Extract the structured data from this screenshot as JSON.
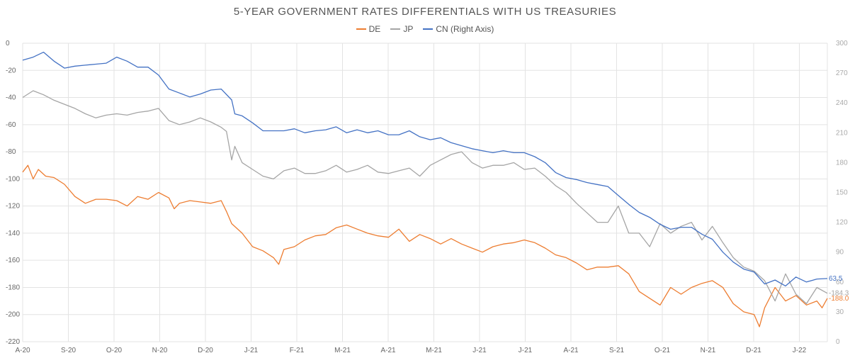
{
  "chart_data": {
    "type": "line",
    "title": "5-YEAR GOVERNMENT RATES DIFFERENTIALS WITH US TREASURIES",
    "grid": true,
    "legend_position": "top-center",
    "x_tick_labels": [
      "A-20",
      "S-20",
      "O-20",
      "N-20",
      "D-20",
      "J-21",
      "F-21",
      "M-21",
      "A-21",
      "M-21",
      "J-21",
      "J-21",
      "A-21",
      "S-21",
      "O-21",
      "N-21",
      "D-21",
      "J-22"
    ],
    "y_left": {
      "ylim": [
        -220,
        0
      ],
      "ticks": [
        0,
        -20,
        -40,
        -60,
        -80,
        -100,
        -120,
        -140,
        -160,
        -180,
        -200,
        -220
      ]
    },
    "y_right": {
      "ylim": [
        0,
        300
      ],
      "ticks": [
        300,
        270,
        240,
        210,
        180,
        150,
        120,
        90,
        60,
        30,
        0
      ]
    },
    "series": [
      {
        "name": "DE",
        "color": "#ED7D31",
        "axis": "left",
        "end_label": "-188.0",
        "points": [
          [
            0,
            -95
          ],
          [
            0.5,
            -90
          ],
          [
            1,
            -100
          ],
          [
            1.5,
            -93
          ],
          [
            2.2,
            -98
          ],
          [
            3,
            -99
          ],
          [
            4,
            -104
          ],
          [
            5,
            -113
          ],
          [
            6,
            -118
          ],
          [
            7,
            -115
          ],
          [
            8,
            -115
          ],
          [
            9,
            -116
          ],
          [
            10,
            -120
          ],
          [
            11,
            -113
          ],
          [
            12,
            -115
          ],
          [
            13,
            -110
          ],
          [
            14,
            -114
          ],
          [
            14.5,
            -122
          ],
          [
            15,
            -118
          ],
          [
            16,
            -116
          ],
          [
            17,
            -117
          ],
          [
            18,
            -118
          ],
          [
            19,
            -116
          ],
          [
            19.5,
            -124
          ],
          [
            20,
            -133
          ],
          [
            21,
            -140
          ],
          [
            22,
            -150
          ],
          [
            23,
            -153
          ],
          [
            24,
            -158
          ],
          [
            24.5,
            -163
          ],
          [
            25,
            -152
          ],
          [
            26,
            -150
          ],
          [
            27,
            -145
          ],
          [
            28,
            -142
          ],
          [
            29,
            -141
          ],
          [
            30,
            -136
          ],
          [
            31,
            -134
          ],
          [
            32,
            -137
          ],
          [
            33,
            -140
          ],
          [
            34,
            -142
          ],
          [
            35,
            -143
          ],
          [
            36,
            -137
          ],
          [
            37,
            -146
          ],
          [
            38,
            -141
          ],
          [
            39,
            -144
          ],
          [
            40,
            -148
          ],
          [
            41,
            -144
          ],
          [
            42,
            -148
          ],
          [
            43,
            -151
          ],
          [
            44,
            -154
          ],
          [
            45,
            -150
          ],
          [
            46,
            -148
          ],
          [
            47,
            -147
          ],
          [
            48,
            -145
          ],
          [
            49,
            -147
          ],
          [
            50,
            -151
          ],
          [
            51,
            -156
          ],
          [
            52,
            -158
          ],
          [
            53,
            -162
          ],
          [
            54,
            -167
          ],
          [
            55,
            -165
          ],
          [
            56,
            -165
          ],
          [
            57,
            -164
          ],
          [
            58,
            -170
          ],
          [
            59,
            -183
          ],
          [
            60,
            -188
          ],
          [
            61,
            -193
          ],
          [
            62,
            -180
          ],
          [
            63,
            -185
          ],
          [
            64,
            -180
          ],
          [
            65,
            -177
          ],
          [
            66,
            -175
          ],
          [
            67,
            -180
          ],
          [
            68,
            -192
          ],
          [
            69,
            -198
          ],
          [
            70,
            -200
          ],
          [
            70.5,
            -209
          ],
          [
            71,
            -195
          ],
          [
            72,
            -180
          ],
          [
            73,
            -190
          ],
          [
            74,
            -186
          ],
          [
            75,
            -193
          ],
          [
            76,
            -190
          ],
          [
            76.5,
            -195
          ],
          [
            77,
            -188
          ]
        ]
      },
      {
        "name": "JP",
        "color": "#A5A5A5",
        "axis": "left",
        "end_label": "-184.3",
        "points": [
          [
            0,
            -40
          ],
          [
            1,
            -35
          ],
          [
            2,
            -38
          ],
          [
            3,
            -42
          ],
          [
            4,
            -45
          ],
          [
            5,
            -48
          ],
          [
            6,
            -52
          ],
          [
            7,
            -55
          ],
          [
            8,
            -53
          ],
          [
            9,
            -52
          ],
          [
            10,
            -53
          ],
          [
            11,
            -51
          ],
          [
            12,
            -50
          ],
          [
            13,
            -48
          ],
          [
            14,
            -57
          ],
          [
            15,
            -60
          ],
          [
            16,
            -58
          ],
          [
            17,
            -55
          ],
          [
            18,
            -58
          ],
          [
            19,
            -62
          ],
          [
            19.5,
            -65
          ],
          [
            20,
            -86
          ],
          [
            20.3,
            -76
          ],
          [
            21,
            -88
          ],
          [
            22,
            -93
          ],
          [
            23,
            -98
          ],
          [
            24,
            -100
          ],
          [
            25,
            -94
          ],
          [
            26,
            -92
          ],
          [
            27,
            -96
          ],
          [
            28,
            -96
          ],
          [
            29,
            -94
          ],
          [
            30,
            -90
          ],
          [
            31,
            -95
          ],
          [
            32,
            -93
          ],
          [
            33,
            -90
          ],
          [
            34,
            -95
          ],
          [
            35,
            -96
          ],
          [
            36,
            -94
          ],
          [
            37,
            -92
          ],
          [
            38,
            -98
          ],
          [
            39,
            -90
          ],
          [
            40,
            -86
          ],
          [
            41,
            -82
          ],
          [
            42,
            -80
          ],
          [
            43,
            -88
          ],
          [
            44,
            -92
          ],
          [
            45,
            -90
          ],
          [
            46,
            -90
          ],
          [
            47,
            -88
          ],
          [
            48,
            -93
          ],
          [
            49,
            -92
          ],
          [
            50,
            -98
          ],
          [
            51,
            -105
          ],
          [
            52,
            -110
          ],
          [
            53,
            -118
          ],
          [
            54,
            -125
          ],
          [
            55,
            -132
          ],
          [
            56,
            -132
          ],
          [
            57,
            -120
          ],
          [
            58,
            -140
          ],
          [
            59,
            -140
          ],
          [
            60,
            -150
          ],
          [
            61,
            -133
          ],
          [
            62,
            -140
          ],
          [
            63,
            -135
          ],
          [
            64,
            -132
          ],
          [
            65,
            -145
          ],
          [
            66,
            -135
          ],
          [
            67,
            -147
          ],
          [
            68,
            -158
          ],
          [
            69,
            -165
          ],
          [
            70,
            -168
          ],
          [
            71,
            -175
          ],
          [
            72,
            -190
          ],
          [
            73,
            -170
          ],
          [
            74,
            -185
          ],
          [
            75,
            -192
          ],
          [
            76,
            -180
          ],
          [
            77,
            -184.3
          ]
        ]
      },
      {
        "name": "CN (Right Axis)",
        "color": "#4472C4",
        "axis": "right",
        "end_label": "63.5",
        "points": [
          [
            0,
            283
          ],
          [
            1,
            286
          ],
          [
            2,
            291
          ],
          [
            3,
            282
          ],
          [
            4,
            275
          ],
          [
            5,
            277
          ],
          [
            6,
            278
          ],
          [
            7,
            279
          ],
          [
            8,
            280
          ],
          [
            9,
            286
          ],
          [
            10,
            282
          ],
          [
            11,
            276
          ],
          [
            12,
            276
          ],
          [
            13,
            268
          ],
          [
            14,
            254
          ],
          [
            15,
            250
          ],
          [
            16,
            246
          ],
          [
            17,
            249
          ],
          [
            18,
            253
          ],
          [
            19,
            254
          ],
          [
            20,
            243
          ],
          [
            20.3,
            229
          ],
          [
            21,
            227
          ],
          [
            22,
            220
          ],
          [
            23,
            212
          ],
          [
            24,
            212
          ],
          [
            25,
            212
          ],
          [
            26,
            214
          ],
          [
            27,
            210
          ],
          [
            28,
            212
          ],
          [
            29,
            213
          ],
          [
            30,
            216
          ],
          [
            31,
            210
          ],
          [
            32,
            213
          ],
          [
            33,
            210
          ],
          [
            34,
            212
          ],
          [
            35,
            208
          ],
          [
            36,
            208
          ],
          [
            37,
            212
          ],
          [
            38,
            206
          ],
          [
            39,
            203
          ],
          [
            40,
            205
          ],
          [
            41,
            200
          ],
          [
            42,
            197
          ],
          [
            43,
            194
          ],
          [
            44,
            192
          ],
          [
            45,
            190
          ],
          [
            46,
            192
          ],
          [
            47,
            190
          ],
          [
            48,
            190
          ],
          [
            49,
            186
          ],
          [
            50,
            180
          ],
          [
            51,
            170
          ],
          [
            52,
            165
          ],
          [
            53,
            163
          ],
          [
            54,
            160
          ],
          [
            55,
            158
          ],
          [
            56,
            156
          ],
          [
            57,
            147
          ],
          [
            58,
            138
          ],
          [
            59,
            130
          ],
          [
            60,
            125
          ],
          [
            61,
            118
          ],
          [
            62,
            113
          ],
          [
            63,
            115
          ],
          [
            64,
            115
          ],
          [
            65,
            108
          ],
          [
            66,
            103
          ],
          [
            67,
            90
          ],
          [
            68,
            80
          ],
          [
            69,
            73
          ],
          [
            70,
            70
          ],
          [
            71,
            58
          ],
          [
            72,
            62
          ],
          [
            73,
            56
          ],
          [
            74,
            65
          ],
          [
            75,
            60
          ],
          [
            76,
            63
          ],
          [
            77,
            63.5
          ]
        ]
      }
    ]
  }
}
